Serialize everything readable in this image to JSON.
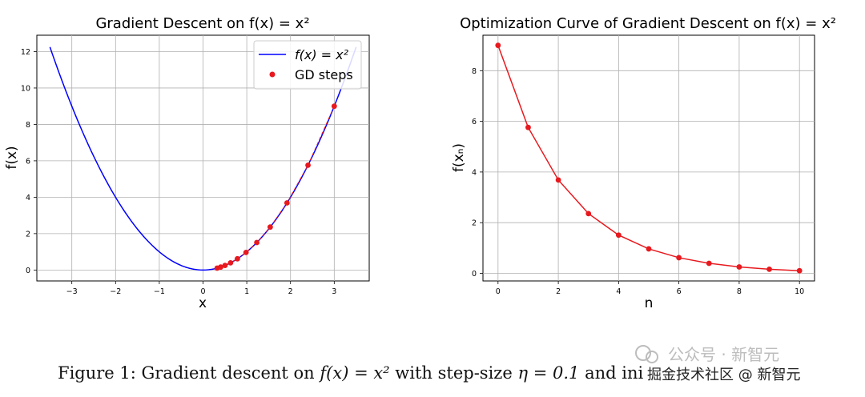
{
  "chart_data": [
    {
      "type": "line",
      "title": "Gradient Descent on f(x) = x²",
      "xlabel": "x",
      "ylabel": "f(x)",
      "xlim": [
        -3.8,
        3.8
      ],
      "ylim": [
        -0.6,
        12.9
      ],
      "xticks": [
        -3,
        -2,
        -1,
        0,
        1,
        2,
        3
      ],
      "yticks": [
        0,
        2,
        4,
        6,
        8,
        10,
        12
      ],
      "grid": true,
      "legend": "top-right",
      "series": [
        {
          "name": "f(x) = x²",
          "kind": "curve",
          "color": "#0000ff",
          "x_range": [
            -3.5,
            3.5
          ]
        },
        {
          "name": "GD steps",
          "kind": "scatter",
          "color": "#e8191e",
          "x": [
            3.0,
            2.4,
            1.92,
            1.536,
            1.229,
            0.983,
            0.786,
            0.629,
            0.503,
            0.403,
            0.322
          ],
          "y": [
            9.0,
            5.76,
            3.686,
            2.359,
            1.51,
            0.966,
            0.618,
            0.396,
            0.253,
            0.162,
            0.104
          ]
        }
      ]
    },
    {
      "type": "line",
      "title": "Optimization Curve of Gradient Descent on f(x) = x²",
      "xlabel": "n",
      "ylabel": "f(xₙ)",
      "xlim": [
        -0.5,
        10.5
      ],
      "ylim": [
        -0.3,
        9.4
      ],
      "xticks": [
        0,
        2,
        4,
        6,
        8,
        10
      ],
      "yticks": [
        0,
        2,
        4,
        6,
        8
      ],
      "grid": true,
      "series": [
        {
          "name": "f(xₙ)",
          "color": "#e8191e",
          "x": [
            0,
            1,
            2,
            3,
            4,
            5,
            6,
            7,
            8,
            9,
            10
          ],
          "y": [
            9.0,
            5.76,
            3.686,
            2.359,
            1.51,
            0.966,
            0.618,
            0.396,
            0.253,
            0.162,
            0.104
          ]
        }
      ]
    }
  ],
  "caption": {
    "prefix": "Figure 1: Gradient descent on ",
    "math": "f(x) = x²",
    "middle": " with step-size ",
    "step": "η = 0.1",
    "suffix": " and ini"
  },
  "watermark": {
    "line1": "公众号 · 新智元",
    "line2": "掘金技术社区 @ 新智元"
  }
}
